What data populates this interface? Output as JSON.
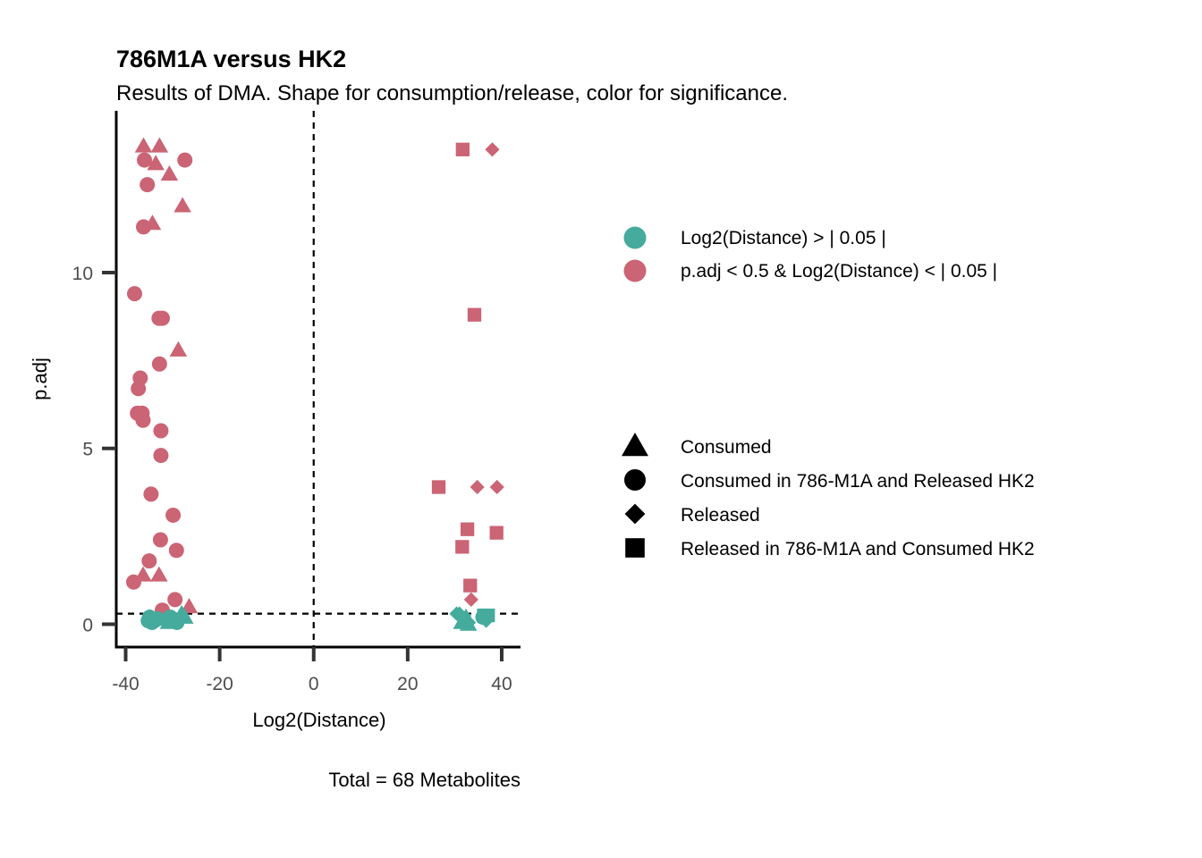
{
  "chart_data": {
    "type": "scatter",
    "title": "786M1A versus HK2",
    "subtitle": "Results of DMA. Shape for consumption/release, color for significance.",
    "xlabel": "Log2(Distance)",
    "ylabel": "p.adj",
    "caption": "Total = 68 Metabolites",
    "xlim": [
      -42,
      44
    ],
    "ylim": [
      -0.65,
      14.6
    ],
    "x_ticks": [
      -40,
      -20,
      0,
      20,
      40
    ],
    "y_ticks": [
      0,
      5,
      10
    ],
    "grid": false,
    "reference_lines": {
      "vertical_x": 0,
      "horizontal_y": 0.3
    },
    "colors": {
      "not_significant": "#45ab9c",
      "significant": "#cb6474"
    },
    "color_legend": [
      {
        "key": "not_significant",
        "label": "Log2(Distance)  > | 0.05 |"
      },
      {
        "key": "significant",
        "label": "p.adj  <  0.5  &  Log2(Distance)  < | 0.05 |"
      }
    ],
    "shape_legend": [
      {
        "shape": "triangle",
        "label": "Consumed"
      },
      {
        "shape": "circle",
        "label": "Consumed in 786-M1A  and Released HK2"
      },
      {
        "shape": "diamond",
        "label": "Released"
      },
      {
        "shape": "square",
        "label": "Released in 786-M1A and Consumed HK2"
      }
    ],
    "points": [
      {
        "x": -36.2,
        "y": 13.6,
        "shape": "triangle",
        "group": "significant"
      },
      {
        "x": -32.8,
        "y": 13.6,
        "shape": "triangle",
        "group": "significant"
      },
      {
        "x": -33.6,
        "y": 13.1,
        "shape": "triangle",
        "group": "significant"
      },
      {
        "x": -30.7,
        "y": 12.8,
        "shape": "triangle",
        "group": "significant"
      },
      {
        "x": -27.9,
        "y": 11.9,
        "shape": "triangle",
        "group": "significant"
      },
      {
        "x": -34.3,
        "y": 11.4,
        "shape": "triangle",
        "group": "significant"
      },
      {
        "x": -28.8,
        "y": 7.8,
        "shape": "triangle",
        "group": "significant"
      },
      {
        "x": -36.3,
        "y": 1.4,
        "shape": "triangle",
        "group": "significant"
      },
      {
        "x": -32.9,
        "y": 1.4,
        "shape": "triangle",
        "group": "significant"
      },
      {
        "x": -26.5,
        "y": 0.5,
        "shape": "triangle",
        "group": "significant"
      },
      {
        "x": -36.0,
        "y": 13.2,
        "shape": "circle",
        "group": "significant"
      },
      {
        "x": -27.4,
        "y": 13.2,
        "shape": "circle",
        "group": "significant"
      },
      {
        "x": -35.4,
        "y": 12.5,
        "shape": "circle",
        "group": "significant"
      },
      {
        "x": -36.2,
        "y": 11.3,
        "shape": "circle",
        "group": "significant"
      },
      {
        "x": -38.1,
        "y": 9.4,
        "shape": "circle",
        "group": "significant"
      },
      {
        "x": -32.9,
        "y": 8.7,
        "shape": "circle",
        "group": "significant"
      },
      {
        "x": -32.2,
        "y": 8.7,
        "shape": "circle",
        "group": "significant"
      },
      {
        "x": -32.8,
        "y": 7.4,
        "shape": "circle",
        "group": "significant"
      },
      {
        "x": -36.9,
        "y": 7.0,
        "shape": "circle",
        "group": "significant"
      },
      {
        "x": -37.3,
        "y": 6.7,
        "shape": "circle",
        "group": "significant"
      },
      {
        "x": -37.5,
        "y": 6.0,
        "shape": "circle",
        "group": "significant"
      },
      {
        "x": -36.5,
        "y": 6.0,
        "shape": "circle",
        "group": "significant"
      },
      {
        "x": -36.3,
        "y": 5.8,
        "shape": "circle",
        "group": "significant"
      },
      {
        "x": -32.5,
        "y": 5.5,
        "shape": "circle",
        "group": "significant"
      },
      {
        "x": -32.5,
        "y": 4.8,
        "shape": "circle",
        "group": "significant"
      },
      {
        "x": -34.6,
        "y": 3.7,
        "shape": "circle",
        "group": "significant"
      },
      {
        "x": -29.9,
        "y": 3.1,
        "shape": "circle",
        "group": "significant"
      },
      {
        "x": -32.6,
        "y": 2.4,
        "shape": "circle",
        "group": "significant"
      },
      {
        "x": -29.2,
        "y": 2.1,
        "shape": "circle",
        "group": "significant"
      },
      {
        "x": -35.0,
        "y": 1.8,
        "shape": "circle",
        "group": "significant"
      },
      {
        "x": -38.3,
        "y": 1.2,
        "shape": "circle",
        "group": "significant"
      },
      {
        "x": -29.5,
        "y": 0.7,
        "shape": "circle",
        "group": "significant"
      },
      {
        "x": -32.2,
        "y": 0.4,
        "shape": "circle",
        "group": "significant"
      },
      {
        "x": 38.0,
        "y": 13.5,
        "shape": "diamond",
        "group": "significant"
      },
      {
        "x": 34.8,
        "y": 3.9,
        "shape": "diamond",
        "group": "significant"
      },
      {
        "x": 39.0,
        "y": 3.9,
        "shape": "diamond",
        "group": "significant"
      },
      {
        "x": 33.5,
        "y": 0.7,
        "shape": "diamond",
        "group": "significant"
      },
      {
        "x": 31.7,
        "y": 13.5,
        "shape": "square",
        "group": "significant"
      },
      {
        "x": 34.2,
        "y": 8.8,
        "shape": "square",
        "group": "significant"
      },
      {
        "x": 26.6,
        "y": 3.9,
        "shape": "square",
        "group": "significant"
      },
      {
        "x": 32.7,
        "y": 2.7,
        "shape": "square",
        "group": "significant"
      },
      {
        "x": 38.9,
        "y": 2.6,
        "shape": "square",
        "group": "significant"
      },
      {
        "x": 31.6,
        "y": 2.2,
        "shape": "square",
        "group": "significant"
      },
      {
        "x": 33.3,
        "y": 1.1,
        "shape": "square",
        "group": "significant"
      },
      {
        "x": -34.9,
        "y": 0.2,
        "shape": "circle",
        "group": "not_significant"
      },
      {
        "x": -33.9,
        "y": 0.1,
        "shape": "circle",
        "group": "not_significant"
      },
      {
        "x": -34.4,
        "y": 0.05,
        "shape": "circle",
        "group": "not_significant"
      },
      {
        "x": -35.2,
        "y": 0.1,
        "shape": "circle",
        "group": "not_significant"
      },
      {
        "x": -33.2,
        "y": 0.15,
        "shape": "circle",
        "group": "not_significant"
      },
      {
        "x": -31.1,
        "y": 0.1,
        "shape": "circle",
        "group": "not_significant"
      },
      {
        "x": -30.5,
        "y": 0.2,
        "shape": "circle",
        "group": "not_significant"
      },
      {
        "x": -29.1,
        "y": 0.05,
        "shape": "circle",
        "group": "not_significant"
      },
      {
        "x": -29.8,
        "y": 0.1,
        "shape": "triangle",
        "group": "not_significant"
      },
      {
        "x": -28.1,
        "y": 0.3,
        "shape": "triangle",
        "group": "not_significant"
      },
      {
        "x": -27.4,
        "y": 0.2,
        "shape": "triangle",
        "group": "not_significant"
      },
      {
        "x": -30.9,
        "y": 0.05,
        "shape": "triangle",
        "group": "not_significant"
      },
      {
        "x": 31.0,
        "y": 0.3,
        "shape": "diamond",
        "group": "not_significant"
      },
      {
        "x": 32.2,
        "y": 0.1,
        "shape": "diamond",
        "group": "not_significant"
      },
      {
        "x": 36.7,
        "y": 0.1,
        "shape": "diamond",
        "group": "not_significant"
      },
      {
        "x": 30.4,
        "y": 0.3,
        "shape": "diamond",
        "group": "not_significant"
      },
      {
        "x": 33.0,
        "y": 0.05,
        "shape": "diamond",
        "group": "not_significant"
      },
      {
        "x": 31.5,
        "y": 0.05,
        "shape": "triangle",
        "group": "not_significant"
      },
      {
        "x": 32.4,
        "y": 0.2,
        "shape": "triangle",
        "group": "not_significant"
      },
      {
        "x": 32.9,
        "y": 0.0,
        "shape": "triangle",
        "group": "not_significant"
      },
      {
        "x": 36.2,
        "y": 0.25,
        "shape": "square",
        "group": "not_significant"
      },
      {
        "x": 37.1,
        "y": 0.25,
        "shape": "square",
        "group": "not_significant"
      },
      {
        "x": 32.0,
        "y": 0.1,
        "shape": "square",
        "group": "not_significant"
      },
      {
        "x": 36.0,
        "y": 0.2,
        "shape": "circle",
        "group": "not_significant"
      }
    ]
  }
}
